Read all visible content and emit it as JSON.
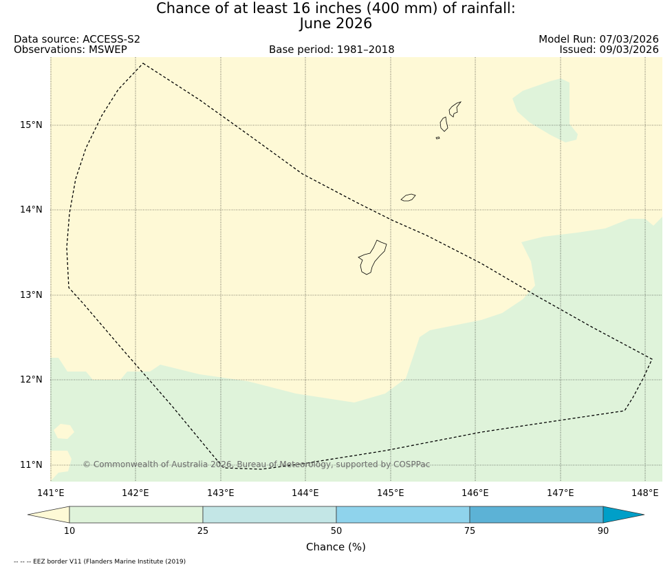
{
  "title": {
    "line1": "Chance of at least 16 inches (400  mm) of rainfall:",
    "line2": "June 2026"
  },
  "header": {
    "data_source": "Data source: ACCESS-S2",
    "observations": "Observations: MSWEP",
    "base_period": "Base period: 1981–2018",
    "model_run": "Model Run: 07/03/2026",
    "issued": "Issued: 09/03/2026"
  },
  "map": {
    "lon_labels": [
      "141°E",
      "142°E",
      "143°E",
      "144°E",
      "145°E",
      "146°E",
      "147°E",
      "148°E"
    ],
    "lat_labels": [
      "15°N",
      "14°N",
      "13°N",
      "12°N",
      "11°N"
    ],
    "copyright": "© Commonwealth of Australia 2026, Bureau of Meteorology, supported by COSPPac",
    "colors": {
      "below_10": "#fef9d6",
      "range_10_25": "#dff3da",
      "coastline": "#000000",
      "eez": "#000000"
    }
  },
  "colorbar": {
    "ticks": [
      "10",
      "25",
      "50",
      "75",
      "90"
    ],
    "label": "Chance (%)",
    "colors": [
      "#fef9d6",
      "#dff3da",
      "#c3e6e6",
      "#8fd3ec",
      "#5cb2d6",
      "#009fc8"
    ]
  },
  "footer": {
    "legend": "-- -- -- EEZ border V11 (Flanders Marine Institute (2019)"
  }
}
